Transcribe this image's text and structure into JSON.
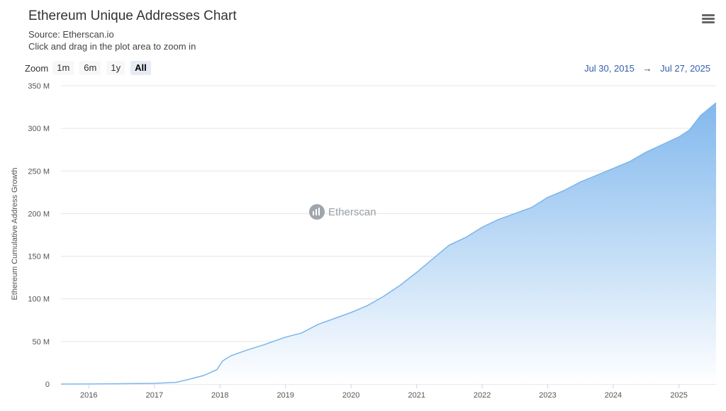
{
  "header": {
    "title": "Ethereum Unique Addresses Chart",
    "source": "Source: Etherscan.io",
    "hint": "Click and drag in the plot area to zoom in",
    "menu_icon": "hamburger-menu-icon"
  },
  "zoom": {
    "label": "Zoom",
    "buttons": [
      "1m",
      "6m",
      "1y",
      "All"
    ],
    "active": "All"
  },
  "range": {
    "from": "Jul 30, 2015",
    "arrow": "→",
    "to": "Jul 27, 2025"
  },
  "watermark": {
    "text": "Etherscan",
    "icon": "etherscan-logo-icon"
  },
  "colors": {
    "area_top": "#7cb5ec",
    "area_bottom": "#ffffff",
    "line": "#7cb5ec",
    "range_text": "#335cad"
  },
  "chart_data": {
    "type": "area",
    "title": "Ethereum Unique Addresses Chart",
    "ylabel": "Ethereum Cumulative Address Growth",
    "xlabel": "",
    "x_range": [
      "2015-07-30",
      "2025-07-27"
    ],
    "ylim": [
      0,
      350
    ],
    "y_unit": "M",
    "y_ticks": [
      0,
      50,
      100,
      150,
      200,
      250,
      300,
      350
    ],
    "y_tick_labels": [
      "0",
      "50 M",
      "100 M",
      "150 M",
      "200 M",
      "250 M",
      "300 M",
      "350 M"
    ],
    "x_tick_labels": [
      "2016",
      "2017",
      "2018",
      "2019",
      "2020",
      "2021",
      "2022",
      "2023",
      "2024",
      "2025"
    ],
    "grid": true,
    "legend": false,
    "series": [
      {
        "points": [
          [
            "2015-07-30",
            0
          ],
          [
            "2016-01-01",
            0.1
          ],
          [
            "2016-07-01",
            0.4
          ],
          [
            "2017-01-01",
            0.8
          ],
          [
            "2017-05-01",
            2
          ],
          [
            "2017-07-01",
            5
          ],
          [
            "2017-10-01",
            10
          ],
          [
            "2017-12-15",
            17
          ],
          [
            "2018-01-15",
            27
          ],
          [
            "2018-03-01",
            33
          ],
          [
            "2018-06-01",
            40
          ],
          [
            "2018-09-01",
            46
          ],
          [
            "2019-01-01",
            55
          ],
          [
            "2019-04-01",
            60
          ],
          [
            "2019-07-01",
            70
          ],
          [
            "2020-01-01",
            84
          ],
          [
            "2020-04-01",
            92
          ],
          [
            "2020-07-01",
            103
          ],
          [
            "2020-10-01",
            116
          ],
          [
            "2021-01-01",
            131
          ],
          [
            "2021-04-01",
            147
          ],
          [
            "2021-07-01",
            163
          ],
          [
            "2021-10-01",
            172
          ],
          [
            "2022-01-01",
            184
          ],
          [
            "2022-04-01",
            193
          ],
          [
            "2022-07-01",
            200
          ],
          [
            "2022-10-01",
            207
          ],
          [
            "2023-01-01",
            219
          ],
          [
            "2023-04-01",
            227
          ],
          [
            "2023-07-01",
            237
          ],
          [
            "2023-10-01",
            245
          ],
          [
            "2024-01-01",
            253
          ],
          [
            "2024-04-01",
            261
          ],
          [
            "2024-07-01",
            272
          ],
          [
            "2024-10-01",
            281
          ],
          [
            "2025-01-01",
            290
          ],
          [
            "2025-03-01",
            298
          ],
          [
            "2025-05-01",
            315
          ],
          [
            "2025-07-27",
            330
          ]
        ]
      }
    ]
  }
}
